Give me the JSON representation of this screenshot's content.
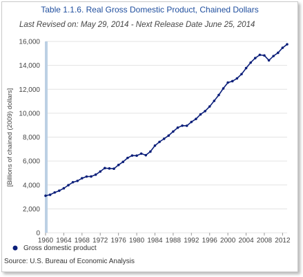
{
  "chart_data": {
    "type": "line",
    "title": "Table 1.1.6. Real Gross Domestic Product, Chained Dollars",
    "subtitle": "Last Revised on: May 29, 2014 - Next Release Date June 25, 2014",
    "ylabel": "[Billions of chained (2009) dollars]",
    "xlabel": "",
    "xlim": [
      1960,
      2013
    ],
    "ylim": [
      0,
      16000
    ],
    "grid": "horizontal",
    "x_ticks": [
      1960,
      1964,
      1968,
      1972,
      1976,
      1980,
      1984,
      1988,
      1992,
      1996,
      2000,
      2004,
      2008,
      2012
    ],
    "y_ticks": [
      0,
      2000,
      4000,
      6000,
      8000,
      10000,
      12000,
      14000,
      16000
    ],
    "legend_position": "bottom-left",
    "series": [
      {
        "name": "Gross domestic product",
        "color": "#0b1f7a",
        "x": [
          1960,
          1961,
          1962,
          1963,
          1964,
          1965,
          1966,
          1967,
          1968,
          1969,
          1970,
          1971,
          1972,
          1973,
          1974,
          1975,
          1976,
          1977,
          1978,
          1979,
          1980,
          1981,
          1982,
          1983,
          1984,
          1985,
          1986,
          1987,
          1988,
          1989,
          1990,
          1991,
          1992,
          1993,
          1994,
          1995,
          1996,
          1997,
          1998,
          1999,
          2000,
          2001,
          2002,
          2003,
          2004,
          2005,
          2006,
          2007,
          2008,
          2009,
          2010,
          2011,
          2012,
          2013
        ],
        "values": [
          3100,
          3180,
          3370,
          3520,
          3720,
          3980,
          4230,
          4340,
          4560,
          4700,
          4710,
          4860,
          5120,
          5410,
          5380,
          5360,
          5670,
          5930,
          6260,
          6460,
          6450,
          6620,
          6490,
          6790,
          7290,
          7600,
          7860,
          8130,
          8470,
          8790,
          8960,
          8950,
          9270,
          9520,
          9900,
          10170,
          10560,
          11030,
          11520,
          12070,
          12560,
          12680,
          12910,
          13270,
          13770,
          14230,
          14610,
          14880,
          14830,
          14420,
          14780,
          15050,
          15470,
          15760
        ]
      }
    ]
  },
  "source": "Source: U.S. Bureau of Economic Analysis",
  "colors": {
    "title": "#1f4e9e",
    "line": "#0b1f7a",
    "grid": "#e3e3e3",
    "year_band": "#bcd0e4"
  }
}
